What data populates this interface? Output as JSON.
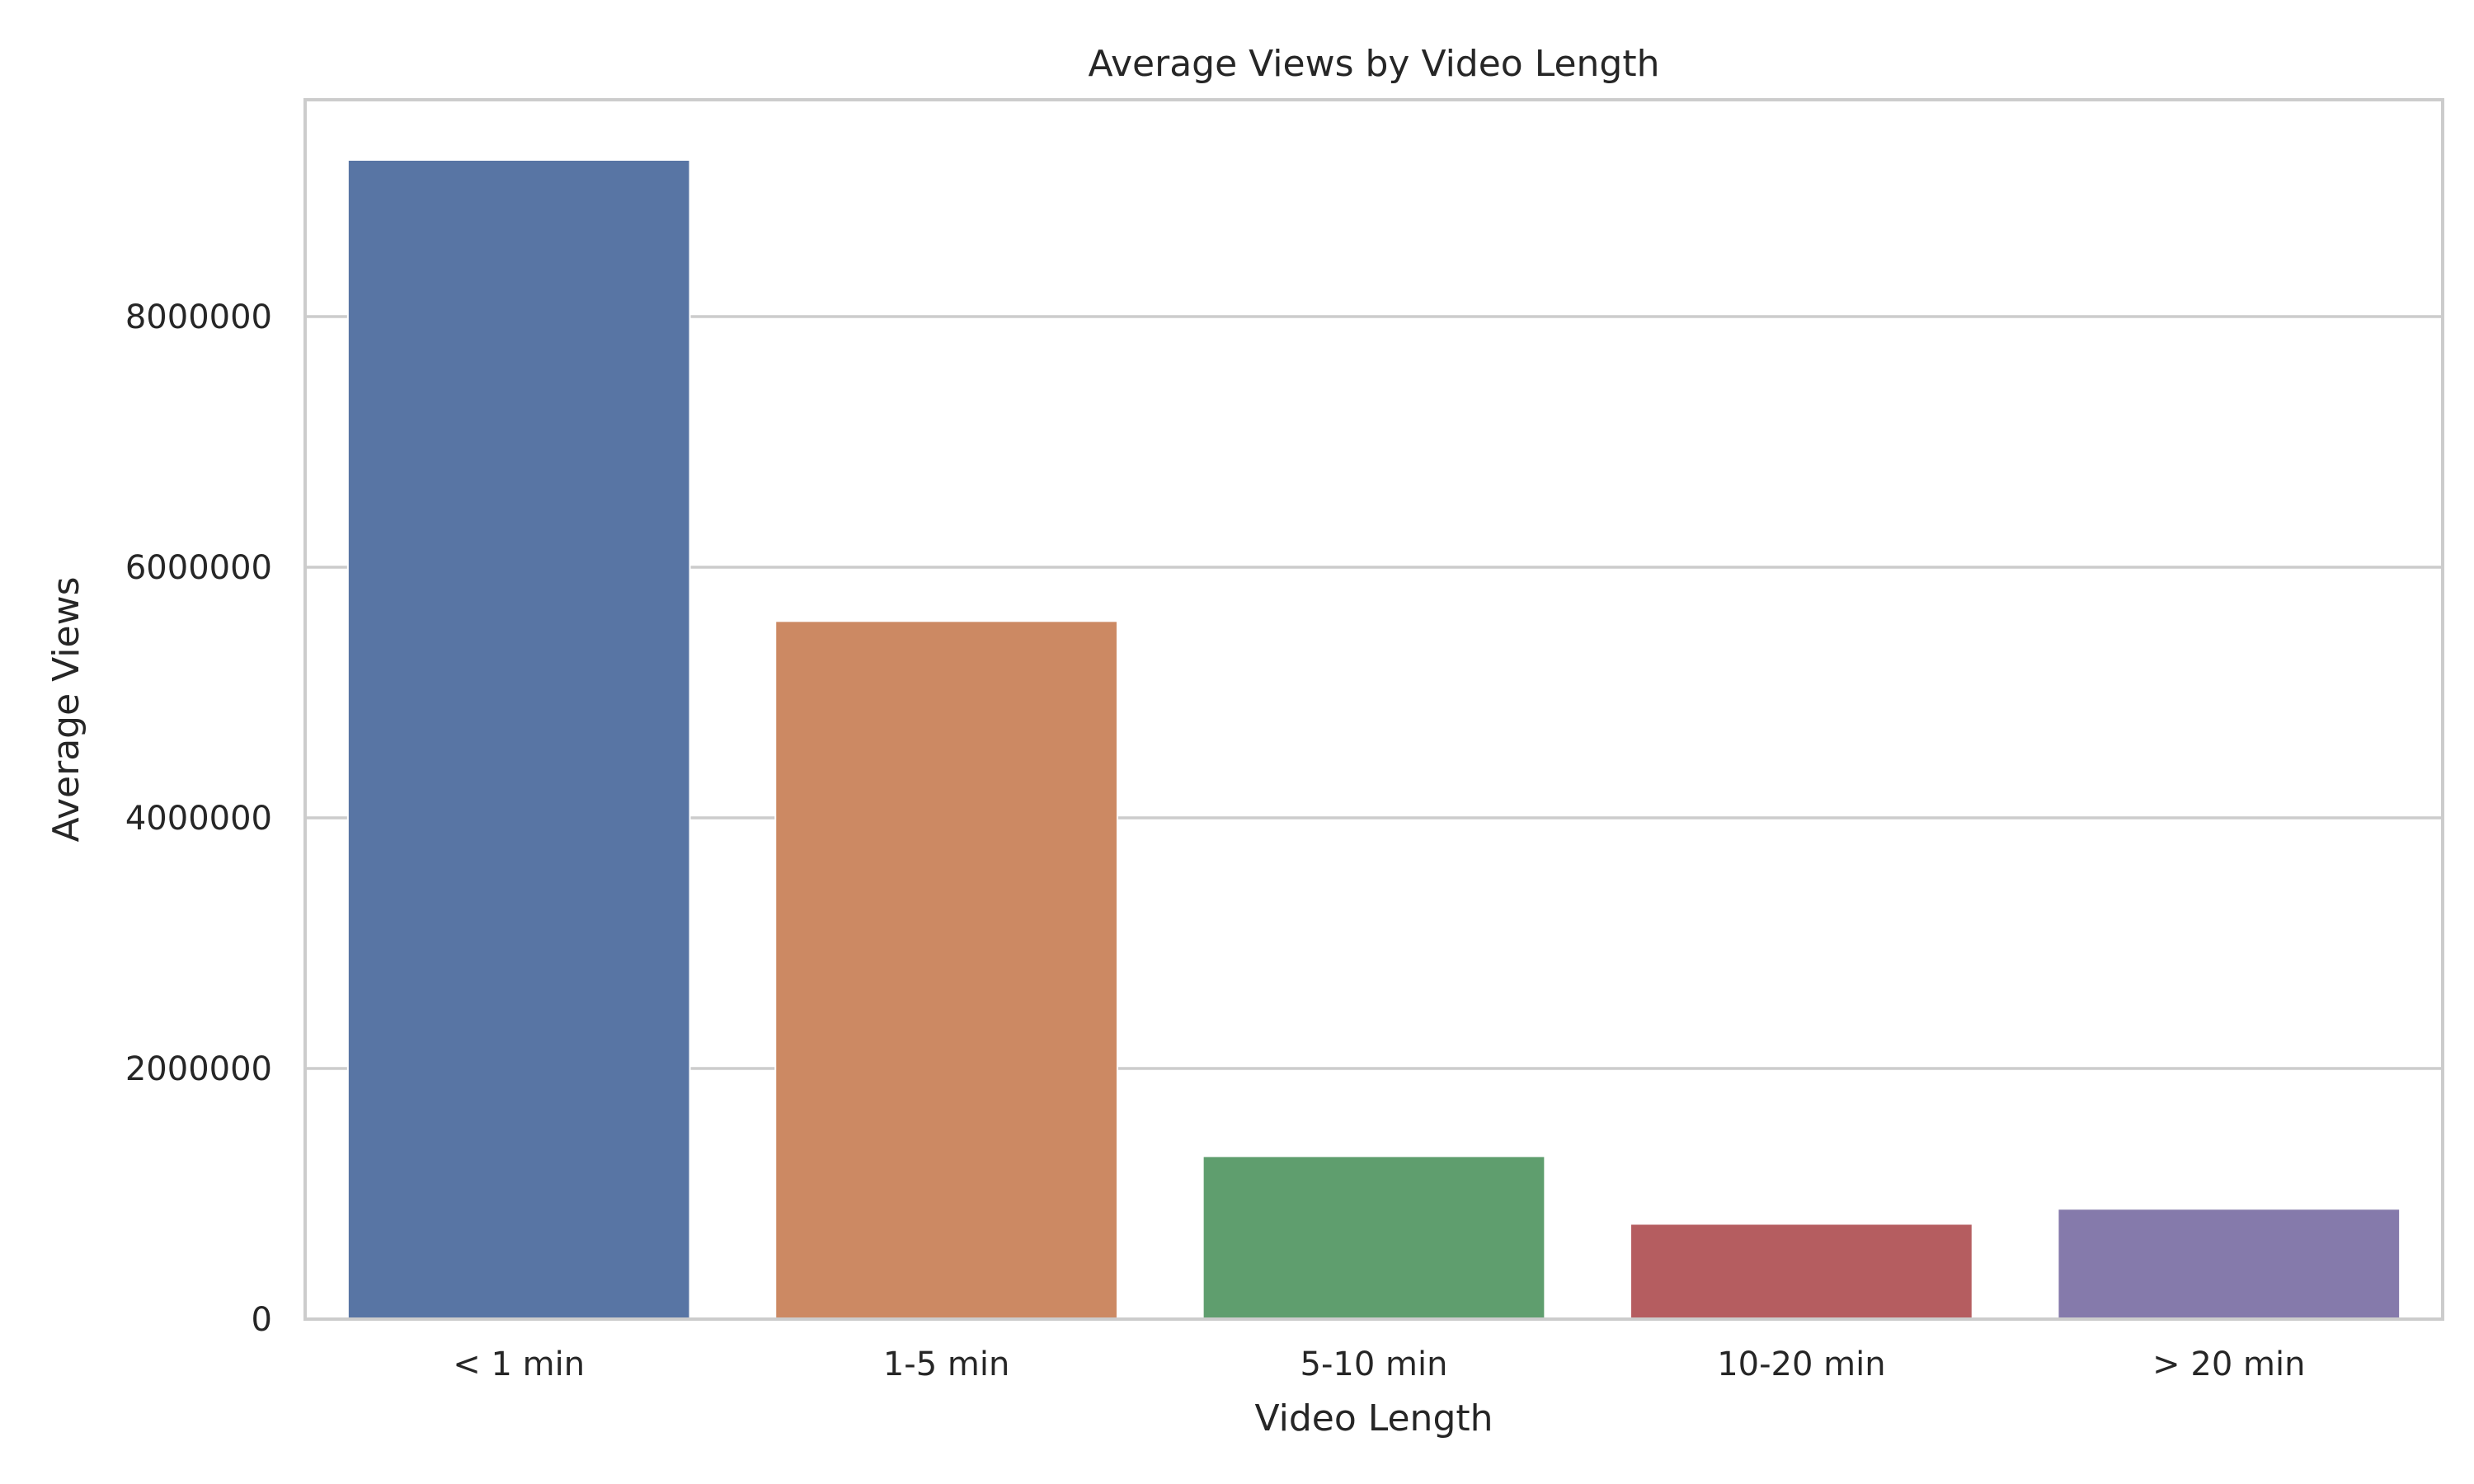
{
  "chart_data": {
    "type": "bar",
    "title": "Average Views by Video Length",
    "xlabel": "Video Length",
    "ylabel": "Average Views",
    "categories": [
      "< 1 min",
      "1-5 min",
      "5-10 min",
      "10-20 min",
      "> 20 min"
    ],
    "values": [
      9250000,
      5570000,
      1300000,
      760000,
      880000
    ],
    "colors": [
      "#5875a4",
      "#cc8963",
      "#5f9e6e",
      "#b55d60",
      "#857aab"
    ],
    "yticks": [
      0,
      2000000,
      4000000,
      6000000,
      8000000
    ],
    "ytick_labels": [
      "0",
      "2000000",
      "4000000",
      "6000000",
      "8000000"
    ],
    "ylim": [
      0,
      9730000
    ],
    "grid": "horizontal",
    "legend": "none"
  }
}
